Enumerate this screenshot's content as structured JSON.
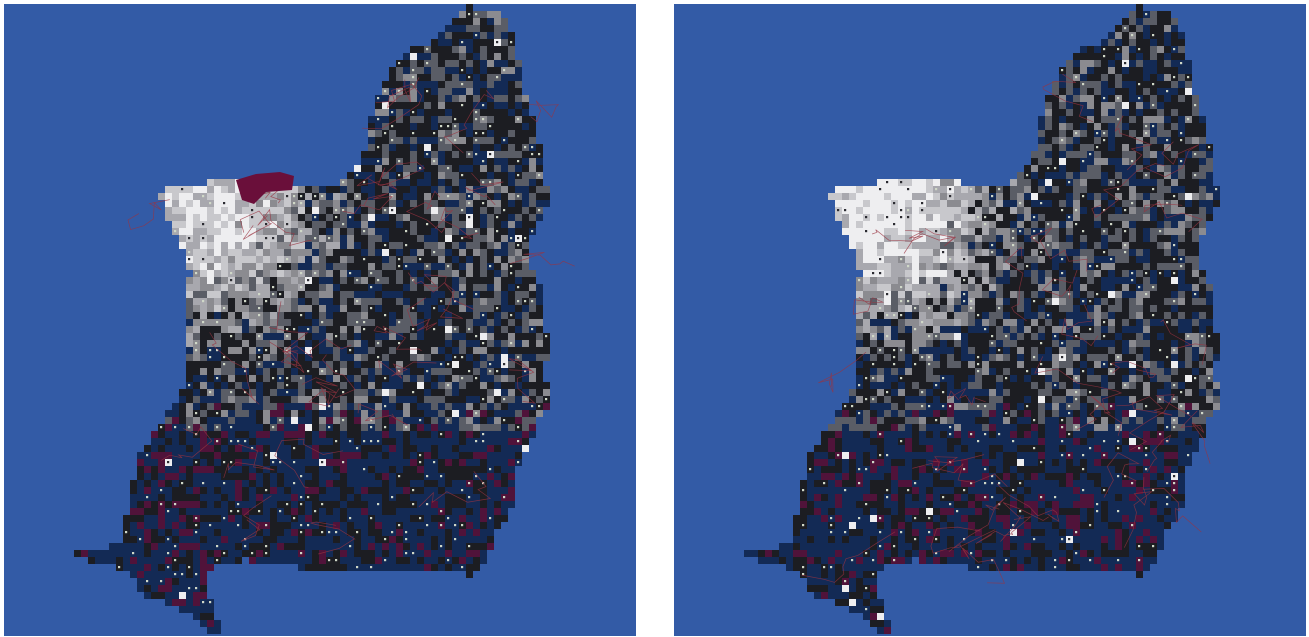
{
  "colors": {
    "ocean": "#335ba6",
    "background": "#ffffff",
    "palette": [
      "#1c1d22",
      "#132a55",
      "#50133a",
      "#5a5d66",
      "#8b8b90",
      "#a8a8ae",
      "#c8c8cc",
      "#eeeef0"
    ],
    "boundary_lines": "#9a3340",
    "point_markers": "#d0d8c8"
  },
  "maps": [
    {
      "name": "left",
      "description": ""
    },
    {
      "name": "right",
      "description": ""
    }
  ]
}
